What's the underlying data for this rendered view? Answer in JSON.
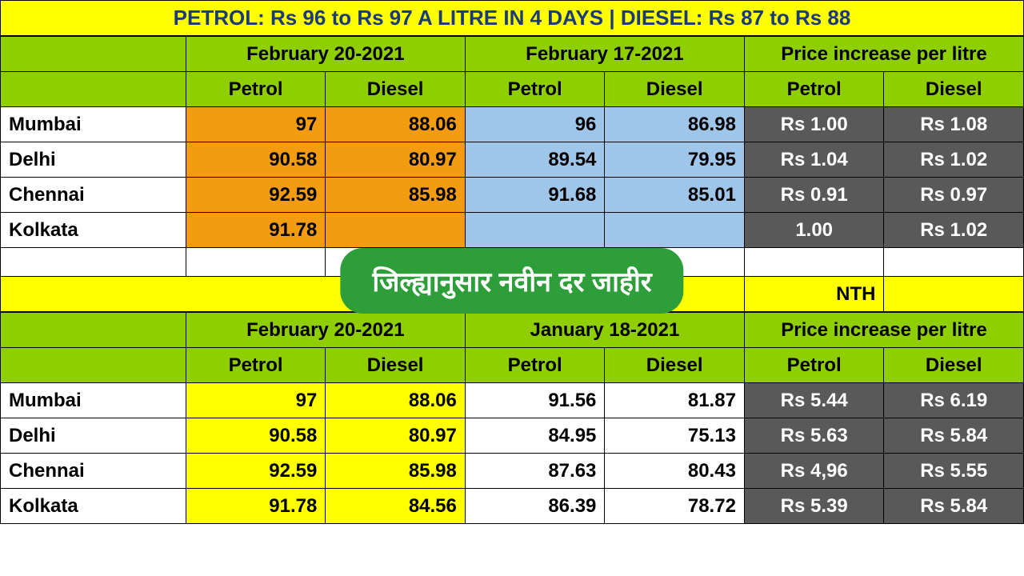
{
  "title": "PETROL: Rs 96 to Rs 97 A LITRE IN 4 DAYS | DIESEL: Rs 87 to Rs 88",
  "overlay_text": "जिल्ह्यानुसार नवीन दर जाहीर",
  "table1": {
    "date_headers": [
      "February 20-2021",
      "February 17-2021",
      "Price increase per litre"
    ],
    "sub_headers": [
      "Petrol",
      "Diesel",
      "Petrol",
      "Diesel",
      "Petrol",
      "Diesel"
    ],
    "rows": [
      {
        "city": "Mumbai",
        "d1p": "97",
        "d1d": "88.06",
        "d2p": "96",
        "d2d": "86.98",
        "ip": "Rs 1.00",
        "id": "Rs 1.08"
      },
      {
        "city": "Delhi",
        "d1p": "90.58",
        "d1d": "80.97",
        "d2p": "89.54",
        "d2d": "79.95",
        "ip": "Rs 1.04",
        "id": "Rs 1.02"
      },
      {
        "city": "Chennai",
        "d1p": "92.59",
        "d1d": "85.98",
        "d2p": "91.68",
        "d2d": "85.01",
        "ip": "Rs 0.91",
        "id": "Rs 0.97"
      },
      {
        "city": "Kolkata",
        "d1p": "91.78",
        "d1d": "",
        "d2p": "",
        "d2d": "",
        "ip": "1.00",
        "id": "Rs 1.02"
      }
    ]
  },
  "mid_band_right": "NTH",
  "table2": {
    "date_headers": [
      "February 20-2021",
      "January 18-2021",
      "Price increase per litre"
    ],
    "sub_headers": [
      "Petrol",
      "Diesel",
      "Petrol",
      "Diesel",
      "Petrol",
      "Diesel"
    ],
    "rows": [
      {
        "city": "Mumbai",
        "d1p": "97",
        "d1d": "88.06",
        "d2p": "91.56",
        "d2d": "81.87",
        "ip": "Rs 5.44",
        "id": "Rs 6.19"
      },
      {
        "city": "Delhi",
        "d1p": "90.58",
        "d1d": "80.97",
        "d2p": "84.95",
        "d2d": "75.13",
        "ip": "Rs 5.63",
        "id": "Rs 5.84"
      },
      {
        "city": "Chennai",
        "d1p": "92.59",
        "d1d": "85.98",
        "d2p": "87.63",
        "d2d": "80.43",
        "ip": "Rs 4,96",
        "id": "Rs 5.55"
      },
      {
        "city": "Kolkata",
        "d1p": "91.78",
        "d1d": "84.56",
        "d2p": "86.39",
        "d2d": "78.72",
        "ip": "Rs 5.39",
        "id": "Rs 5.84"
      }
    ]
  },
  "colors": {
    "title_bg": "#ffff00",
    "title_text": "#1a3a7a",
    "green": "#8fce00",
    "orange": "#f39c12",
    "blue": "#9fc5e8",
    "gray": "#595959",
    "yellow": "#ffff00",
    "white": "#ffffff",
    "overlay_bg": "#2e9e3b",
    "border": "#000000"
  }
}
